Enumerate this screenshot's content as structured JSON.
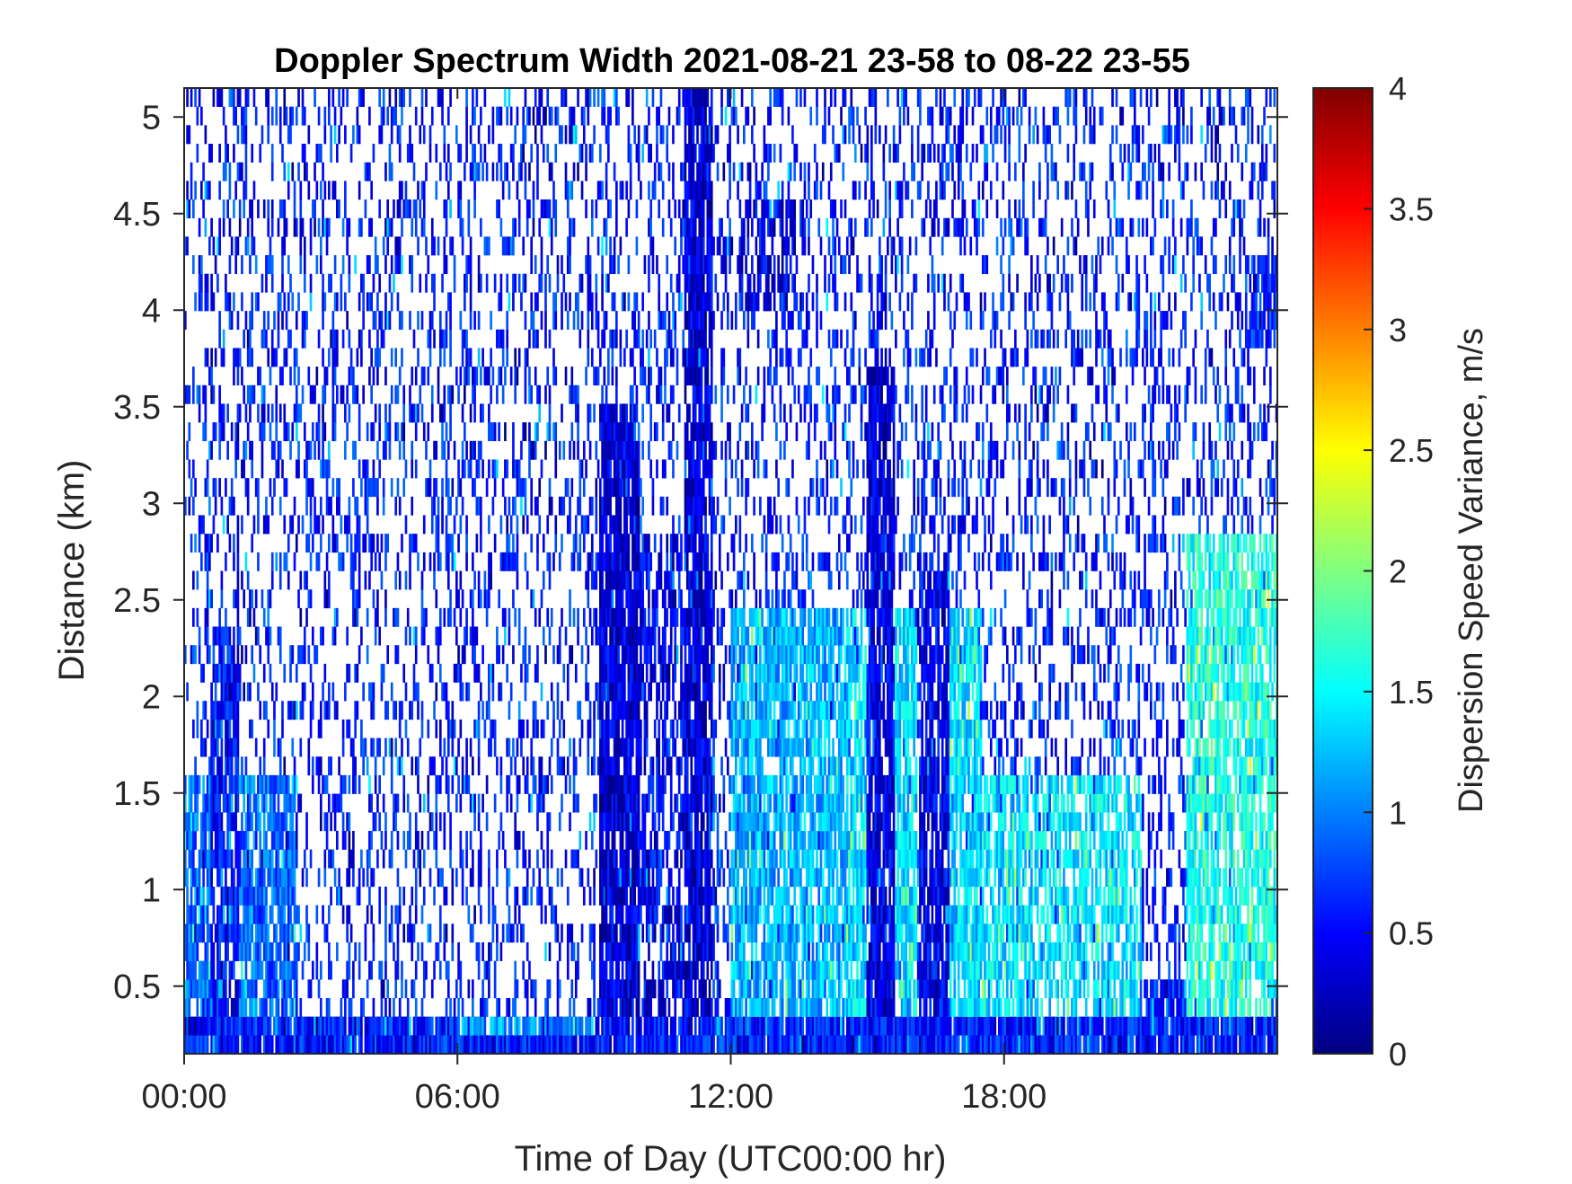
{
  "chart_data": {
    "type": "heatmap",
    "title": "Doppler Spectrum Width 2021-08-21 23-58 to 08-22 23-55",
    "xlabel": "Time of Day (UTC00:00 hr)",
    "ylabel": "Distance (km)",
    "colorbar_label": "Dispersion Speed Variance, m/s",
    "colormap": "jet",
    "xlim": [
      0,
      24
    ],
    "ylim": [
      0.15,
      5.15
    ],
    "clim": [
      0,
      4
    ],
    "x_ticks": [
      0,
      6,
      12,
      18
    ],
    "x_tick_labels": [
      "00:00",
      "06:00",
      "12:00",
      "18:00"
    ],
    "y_ticks": [
      0.5,
      1,
      1.5,
      2,
      2.5,
      3,
      3.5,
      4,
      4.5,
      5
    ],
    "y_tick_labels": [
      "0.5",
      "1",
      "1.5",
      "2",
      "2.5",
      "3",
      "3.5",
      "4",
      "4.5",
      "5"
    ],
    "colorbar_ticks": [
      0,
      0.5,
      1,
      1.5,
      2,
      2.5,
      3,
      3.5,
      4
    ],
    "colorbar_tick_labels": [
      "0",
      "0.5",
      "1",
      "1.5",
      "2",
      "2.5",
      "3",
      "3.5",
      "4"
    ],
    "grid": false,
    "regions": [
      {
        "t": [
          0,
          2.5
        ],
        "h": [
          0.15,
          1.6
        ],
        "value": 0.9,
        "density": 0.8
      },
      {
        "t": [
          0.6,
          1.2
        ],
        "h": [
          0.15,
          2.4
        ],
        "value": 0.55,
        "density": 0.8
      },
      {
        "t": [
          0,
          24
        ],
        "h": [
          0.15,
          0.3
        ],
        "value": 0.6,
        "density": 0.95
      },
      {
        "t": [
          6,
          9
        ],
        "h": [
          0.25,
          0.35
        ],
        "value": 1.1,
        "density": 0.9
      },
      {
        "t": [
          9.1,
          10.0
        ],
        "h": [
          0.3,
          3.55
        ],
        "value": 0.35,
        "density": 0.9
      },
      {
        "t": [
          10,
          11
        ],
        "h": [
          0.3,
          2.8
        ],
        "value": 0.45,
        "density": 0.6
      },
      {
        "t": [
          11,
          11.6
        ],
        "h": [
          0.3,
          5.15
        ],
        "value": 0.35,
        "density": 0.85
      },
      {
        "t": [
          12.2,
          13.6
        ],
        "h": [
          4.0,
          4.6
        ],
        "value": 0.4,
        "density": 0.6
      },
      {
        "t": [
          12.0,
          14.5
        ],
        "h": [
          0.3,
          2.5
        ],
        "value": 1.2,
        "density": 0.8
      },
      {
        "t": [
          14.5,
          17.5
        ],
        "h": [
          0.3,
          2.5
        ],
        "value": 1.35,
        "density": 0.8
      },
      {
        "t": [
          15.0,
          15.6
        ],
        "h": [
          0.3,
          3.7
        ],
        "value": 0.4,
        "density": 0.85
      },
      {
        "t": [
          16.1,
          16.8
        ],
        "h": [
          0.3,
          2.7
        ],
        "value": 0.45,
        "density": 0.8
      },
      {
        "t": [
          17.5,
          21.0
        ],
        "h": [
          0.3,
          1.6
        ],
        "value": 1.4,
        "density": 0.7
      },
      {
        "t": [
          21.0,
          22.5
        ],
        "h": [
          0.3,
          0.5
        ],
        "value": 0.6,
        "density": 0.85
      },
      {
        "t": [
          22.0,
          24.0
        ],
        "h": [
          0.3,
          2.8
        ],
        "value": 1.6,
        "density": 0.75
      },
      {
        "t": [
          23.3,
          24.0
        ],
        "h": [
          3.8,
          4.3
        ],
        "value": 0.7,
        "density": 0.85
      }
    ],
    "background": {
      "value": 0.6,
      "density": 0.28
    }
  }
}
